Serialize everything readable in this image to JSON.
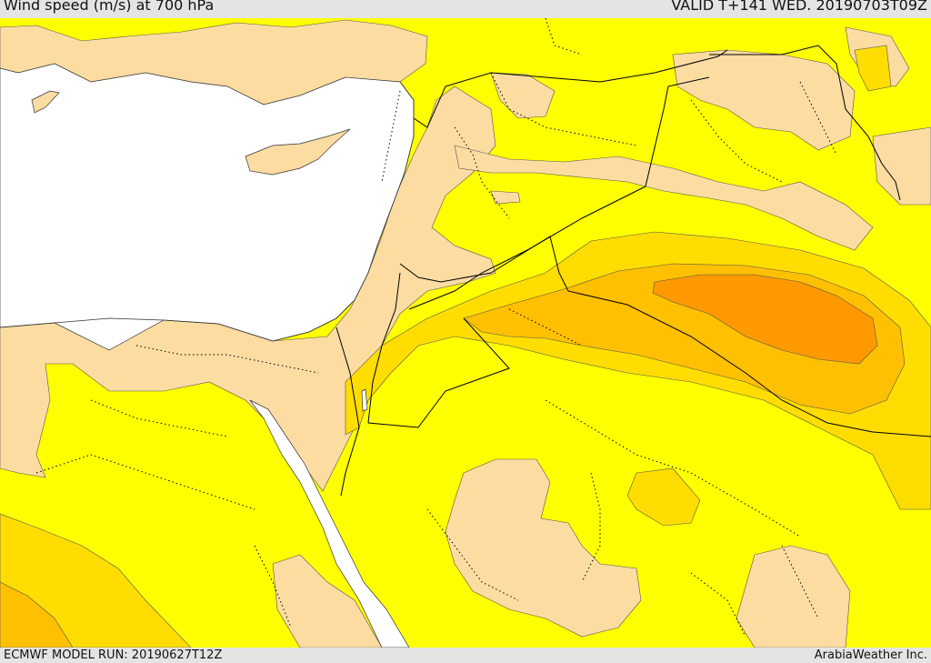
{
  "header": {
    "title": "Wind speed (m/s) at 700 hPa",
    "valid": "VALID T+141 WED. 20190703T09Z"
  },
  "footer": {
    "model_run": "ECMWF MODEL RUN: 20190627T12Z",
    "credit": "ArabiaWeather Inc."
  },
  "colors": {
    "sea": "#ffffff",
    "light_wind": "#fddca2",
    "moderate_wind": "#ffff00",
    "fresh_wind": "#ffdd00",
    "strong_wind": "#ffc000",
    "very_strong_wind": "#ff9900",
    "contour": "#555555",
    "border": "#000000"
  }
}
